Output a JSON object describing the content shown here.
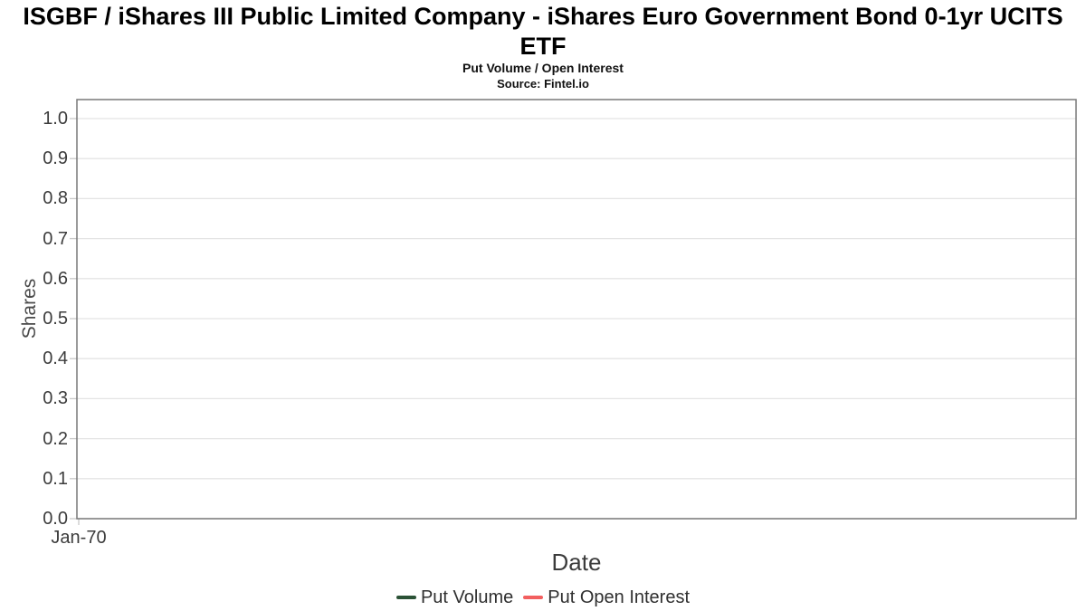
{
  "chart_data": {
    "type": "line",
    "title": "ISGBF / iShares III Public Limited Company - iShares Euro Government Bond 0-1yr UCITS ETF",
    "subtitle": "Put Volume / Open Interest",
    "source": "Source: Fintel.io",
    "xlabel": "Date",
    "ylabel": "Shares",
    "ylim": [
      0.0,
      1.047
    ],
    "yticks": [
      0.0,
      0.1,
      0.2,
      0.3,
      0.4,
      0.5,
      0.6,
      0.7,
      0.8,
      0.9,
      1.0
    ],
    "ytick_labels": [
      "0.0",
      "0.1",
      "0.2",
      "0.3",
      "0.4",
      "0.5",
      "0.6",
      "0.7",
      "0.8",
      "0.9",
      "1.0"
    ],
    "xtick_labels": [
      "Jan-70"
    ],
    "grid": "horizontal",
    "legend_position": "bottom",
    "note": "empty chart - no data points plotted",
    "series": [
      {
        "name": "Put Volume",
        "color": "#2b5236",
        "x": [],
        "values": []
      },
      {
        "name": "Put Open Interest",
        "color": "#f25f5f",
        "x": [],
        "values": []
      }
    ]
  }
}
